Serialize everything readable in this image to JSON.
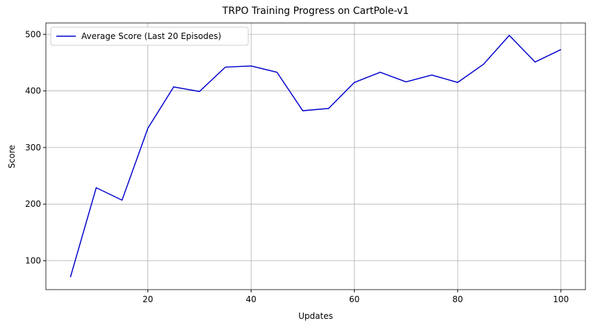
{
  "chart_data": {
    "type": "line",
    "title": "TRPO Training Progress on CartPole-v1",
    "x_label": "Updates",
    "y_label": "Score",
    "x": [
      5,
      10,
      15,
      20,
      25,
      30,
      35,
      40,
      45,
      50,
      55,
      60,
      65,
      70,
      75,
      80,
      85,
      90,
      95,
      100
    ],
    "series": [
      {
        "name": "Average Score (Last 20 Episodes)",
        "color": "#0000cc",
        "values": [
          71,
          229,
          207,
          334,
          407,
          399,
          442,
          444,
          433,
          365,
          369,
          415,
          433,
          416,
          428,
          415,
          447,
          498,
          451,
          473
        ]
      }
    ],
    "xlim": [
      0.25,
      104.75
    ],
    "ylim": [
      49,
      520
    ],
    "xticks": [
      20,
      40,
      60,
      80,
      100
    ],
    "yticks": [
      100,
      200,
      300,
      400,
      500
    ],
    "grid": true,
    "legend": "upper-left"
  }
}
